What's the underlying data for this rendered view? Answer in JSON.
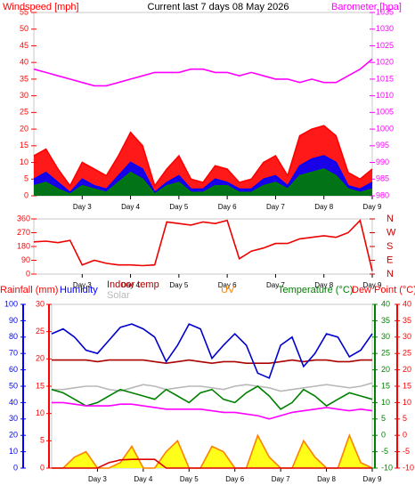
{
  "chart_data": [
    {
      "type": "line",
      "title": "Current last 7 days 08 May 2026",
      "x": [
        2,
        2.25,
        2.5,
        2.75,
        3,
        3.25,
        3.5,
        3.75,
        4,
        4.25,
        4.5,
        4.75,
        5,
        5.25,
        5.5,
        5.75,
        6,
        6.25,
        6.5,
        6.75,
        7,
        7.25,
        7.5,
        7.75,
        8,
        8.25,
        8.5,
        8.75,
        9
      ],
      "xlim": [
        2,
        9
      ],
      "xticks": [
        {
          "value": 3,
          "label": "Day 3"
        },
        {
          "value": 4,
          "label": "Day 4"
        },
        {
          "value": 5,
          "label": "Day 5"
        },
        {
          "value": 6,
          "label": "Day 6"
        },
        {
          "value": 7,
          "label": "Day 7"
        },
        {
          "value": 8,
          "label": "Day 8"
        },
        {
          "value": 9,
          "label": "Day 9"
        }
      ],
      "axes": [
        {
          "label": "Windspeed [mph]",
          "color": "#ff0000",
          "lim": [
            0,
            55
          ],
          "ticks": [
            0,
            5,
            10,
            15,
            20,
            25,
            30,
            35,
            40,
            45,
            50,
            55
          ]
        },
        {
          "label": "Barometer [hpa]",
          "color": "#ff00ff",
          "lim": [
            980,
            1035
          ],
          "ticks": [
            980,
            985,
            990,
            995,
            1000,
            1005,
            1010,
            1015,
            1020,
            1025,
            1030,
            1035
          ]
        }
      ],
      "series": [
        {
          "color": "#ff0000",
          "fill": "#ff0000",
          "axis": 0,
          "values": [
            12,
            14,
            8,
            3,
            10,
            8,
            6,
            12,
            19,
            15,
            3,
            8,
            12,
            5,
            4,
            9,
            8,
            4,
            5,
            10,
            12,
            6,
            18,
            20,
            21,
            18,
            7,
            5,
            8
          ]
        },
        {
          "color": "#0000ff",
          "fill": "#0000ff",
          "axis": 0,
          "values": [
            5,
            7,
            4,
            1,
            5,
            3,
            2,
            6,
            10,
            8,
            1,
            4,
            6,
            2,
            2,
            5,
            4,
            2,
            2,
            5,
            6,
            3,
            9,
            11,
            12,
            10,
            3,
            2,
            4
          ]
        },
        {
          "color": "#008000",
          "fill": "#008000",
          "axis": 0,
          "values": [
            3,
            4,
            2,
            0.5,
            3,
            2,
            1,
            4,
            7,
            5,
            0.5,
            3,
            4,
            1,
            1,
            3,
            3,
            1,
            1,
            3,
            4,
            2,
            6,
            7,
            8,
            6,
            2,
            1,
            2
          ]
        },
        {
          "color": "#ff00ff",
          "axis": 1,
          "values": [
            1018,
            1017,
            1016,
            1015,
            1014,
            1013,
            1013,
            1014,
            1015,
            1016,
            1017,
            1017,
            1017,
            1018,
            1018,
            1017,
            1017,
            1016,
            1017,
            1016,
            1015,
            1015,
            1014,
            1015,
            1014,
            1014,
            1016,
            1018,
            1021
          ]
        }
      ]
    },
    {
      "type": "line",
      "x": [
        2,
        2.25,
        2.5,
        2.75,
        3,
        3.25,
        3.5,
        3.75,
        4,
        4.25,
        4.5,
        4.75,
        5,
        5.25,
        5.5,
        5.75,
        6,
        6.25,
        6.5,
        6.75,
        7,
        7.25,
        7.5,
        7.75,
        8,
        8.25,
        8.5,
        8.75,
        9
      ],
      "xlim": [
        2,
        9
      ],
      "xticks": [
        {
          "value": 3,
          "label": "Day 3"
        },
        {
          "value": 4,
          "label": "Day 4"
        },
        {
          "value": 5,
          "label": "Day 5"
        },
        {
          "value": 6,
          "label": "Day 6"
        },
        {
          "value": 7,
          "label": "Day 7"
        },
        {
          "value": 8,
          "label": "Day 8"
        },
        {
          "value": 9,
          "label": "Day 9"
        }
      ],
      "axes": [
        {
          "color": "#ff0000",
          "lim": [
            0,
            360
          ],
          "ticks": [
            0,
            90,
            180,
            270,
            360
          ]
        },
        {
          "color": "#cc0000",
          "lim": [
            0,
            360
          ],
          "ticks": [
            {
              "value": 0,
              "label": "N"
            },
            {
              "value": 90,
              "label": "E"
            },
            {
              "value": 180,
              "label": "S"
            },
            {
              "value": 270,
              "label": "W"
            },
            {
              "value": 360,
              "label": "N"
            }
          ]
        }
      ],
      "series": [
        {
          "color": "#ee0000",
          "axis": 0,
          "values": [
            210,
            215,
            205,
            220,
            60,
            90,
            70,
            60,
            60,
            55,
            60,
            340,
            330,
            320,
            340,
            330,
            350,
            100,
            150,
            170,
            200,
            200,
            230,
            240,
            250,
            240,
            270,
            350,
            20
          ]
        }
      ]
    },
    {
      "type": "line",
      "x": [
        2,
        2.25,
        2.5,
        2.75,
        3,
        3.25,
        3.5,
        3.75,
        4,
        4.25,
        4.5,
        4.75,
        5,
        5.25,
        5.5,
        5.75,
        6,
        6.25,
        6.5,
        6.75,
        7,
        7.25,
        7.5,
        7.75,
        8,
        8.25,
        8.5,
        8.75,
        9
      ],
      "xlim": [
        2,
        9
      ],
      "xticks": [
        {
          "value": 3,
          "label": "Day 3"
        },
        {
          "value": 4,
          "label": "Day 4"
        },
        {
          "value": 5,
          "label": "Day 5"
        },
        {
          "value": 6,
          "label": "Day 6"
        },
        {
          "value": 7,
          "label": "Day 7"
        },
        {
          "value": 8,
          "label": "Day 8"
        },
        {
          "value": 9,
          "label": "Day 9"
        }
      ],
      "axes": [
        {
          "label": "Humidity",
          "color": "#0000ff",
          "lim": [
            0,
            100
          ],
          "ticks": [
            0,
            10,
            20,
            30,
            40,
            50,
            60,
            70,
            80,
            90,
            100
          ]
        },
        {
          "label": "Rainfall (mm)",
          "color": "#ff0000",
          "lim": [
            0,
            30
          ],
          "ticks": [
            0,
            5,
            10,
            15,
            20,
            25,
            30
          ]
        },
        {
          "label": "Temperature (°C)",
          "color": "#008000",
          "lim": [
            -10,
            40
          ],
          "ticks": [
            -10,
            -5,
            0,
            5,
            10,
            15,
            20,
            25,
            30,
            35,
            40
          ]
        },
        {
          "label": "Dew Point (°C)",
          "color": "#ff0000",
          "lim": [
            -10,
            40
          ],
          "ticks": [
            -10,
            -5,
            0,
            5,
            10,
            15,
            20,
            25,
            30,
            35,
            40
          ]
        }
      ],
      "series": [
        {
          "name": "UV",
          "color": "#ff8000",
          "fill": "#ffff00",
          "axis": 1,
          "values": [
            0,
            0,
            2,
            3,
            0,
            0,
            1,
            4,
            0,
            0,
            3,
            5,
            0,
            0,
            4,
            3,
            0,
            0,
            6,
            2,
            0,
            0,
            5,
            2,
            0,
            0,
            6,
            1,
            0
          ]
        },
        {
          "name": "Solar",
          "color": "#b8b8b8",
          "axis": 0,
          "values": [
            48,
            48,
            49,
            50,
            50,
            48,
            47,
            49,
            51,
            50,
            48,
            49,
            50,
            50,
            49,
            48,
            50,
            51,
            50,
            49,
            47,
            48,
            49,
            50,
            51,
            50,
            49,
            50,
            52
          ]
        },
        {
          "name": "Indoor temp",
          "color": "#aa0000",
          "axis": 2,
          "values": [
            23,
            23,
            23,
            23,
            22.5,
            23,
            23,
            23,
            23,
            22.5,
            22,
            22.5,
            23,
            22.5,
            22,
            22.5,
            22.5,
            22,
            22,
            22,
            22.5,
            23,
            22.5,
            23,
            23,
            22.5,
            22.5,
            23,
            23
          ]
        },
        {
          "color": "#008000",
          "axis": 2,
          "values": [
            14,
            13,
            11,
            9,
            10,
            12,
            14,
            13,
            12,
            11,
            14,
            12,
            10,
            13,
            14,
            11,
            10,
            13,
            15,
            12,
            8,
            10,
            14,
            12,
            9,
            11,
            13,
            12,
            11
          ]
        },
        {
          "color": "#ff00ff",
          "axis": 3,
          "values": [
            10,
            10,
            9.5,
            9,
            9,
            9,
            9.5,
            9.5,
            9,
            8.5,
            8,
            8,
            8,
            8,
            7.5,
            7,
            7,
            6.5,
            6,
            5,
            6,
            7,
            7.5,
            8,
            8.5,
            8,
            7.5,
            8,
            7.5
          ]
        },
        {
          "color": "#0000cc",
          "axis": 0,
          "values": [
            82,
            85,
            80,
            72,
            70,
            78,
            86,
            88,
            85,
            80,
            65,
            75,
            88,
            85,
            67,
            75,
            82,
            75,
            58,
            55,
            75,
            80,
            62,
            70,
            82,
            80,
            68,
            72,
            82
          ]
        },
        {
          "color": "#dd0000",
          "axis": 1,
          "values": [
            0,
            0,
            0,
            0,
            0,
            1,
            1.5,
            1.6,
            1.6,
            1.6,
            0,
            0,
            0,
            0,
            0,
            0,
            0,
            0,
            0,
            0,
            0,
            0,
            0,
            0,
            0,
            0,
            0,
            0,
            0
          ]
        }
      ]
    }
  ]
}
